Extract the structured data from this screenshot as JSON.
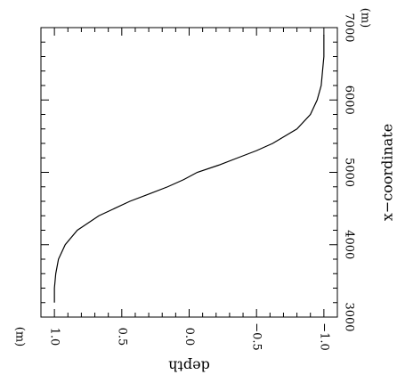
{
  "chart_data": {
    "type": "line",
    "orientation": "rotated-90",
    "xlabel": "x−coordinate",
    "xunit": "(m)",
    "ylabel": "depth",
    "yunit": "(m)",
    "xlim": [
      3000,
      7000
    ],
    "ylim": [
      -1.1,
      1.1
    ],
    "x_ticks": [
      3000,
      4000,
      5000,
      6000,
      7000
    ],
    "x_tick_labels": [
      "3000",
      "4000",
      "5000",
      "6000",
      "7000"
    ],
    "y_ticks": [
      1.0,
      0.5,
      0.0,
      -0.5,
      -1.0
    ],
    "y_tick_labels": [
      "1.0",
      "0.5",
      "0.0",
      "−0.5",
      "−1.0"
    ],
    "grid": false,
    "series": [
      {
        "color": "#000000",
        "x": [
          3200,
          3400,
          3600,
          3800,
          4000,
          4200,
          4400,
          4600,
          4700,
          4800,
          4900,
          5000,
          5100,
          5200,
          5300,
          5400,
          5600,
          5800,
          6000,
          6200,
          6400,
          6600,
          6800,
          6900
        ],
        "y": [
          1.0,
          1.0,
          0.99,
          0.97,
          0.92,
          0.83,
          0.67,
          0.44,
          0.3,
          0.16,
          0.04,
          -0.06,
          -0.22,
          -0.36,
          -0.5,
          -0.62,
          -0.8,
          -0.9,
          -0.95,
          -0.98,
          -0.99,
          -1.0,
          -1.0,
          -1.0
        ]
      }
    ]
  }
}
